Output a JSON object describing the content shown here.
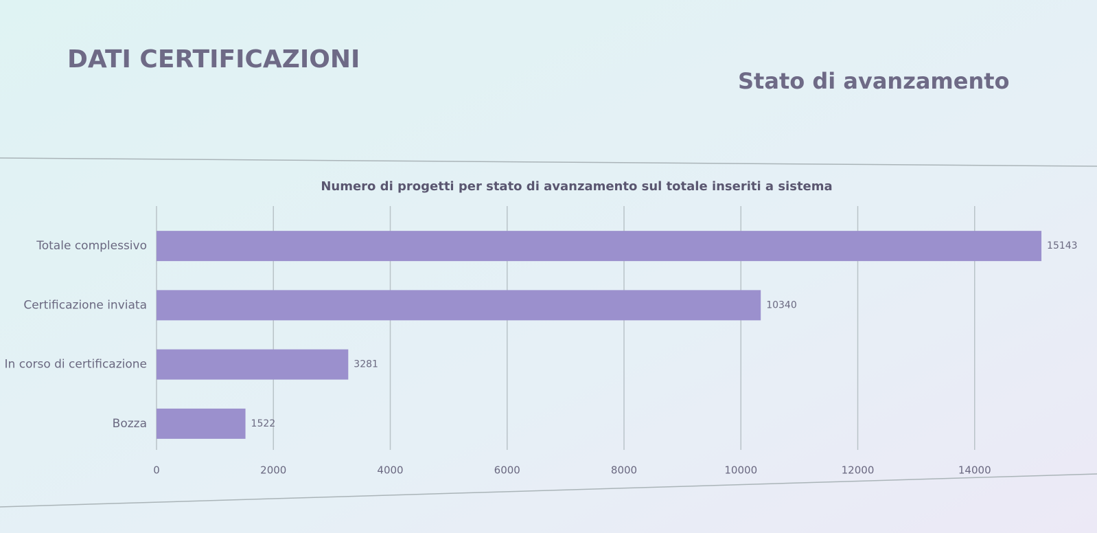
{
  "slide": {
    "title": "DATI CERTIFICAZIONI",
    "subtitle": "Stato di avanzamento"
  },
  "chart_data": {
    "type": "bar",
    "orientation": "horizontal",
    "title": "Numero di progetti per stato di avanzamento sul totale inseriti a sistema",
    "categories": [
      "Totale complessivo",
      "Certificazione inviata",
      "In corso di certificazione",
      "Bozza"
    ],
    "values": [
      15143,
      10340,
      3281,
      1522
    ],
    "color": "#9b90cd",
    "xlim": [
      0,
      16000
    ],
    "xticks": [
      0,
      2000,
      4000,
      6000,
      8000,
      10000,
      12000,
      14000
    ],
    "grid": true
  }
}
